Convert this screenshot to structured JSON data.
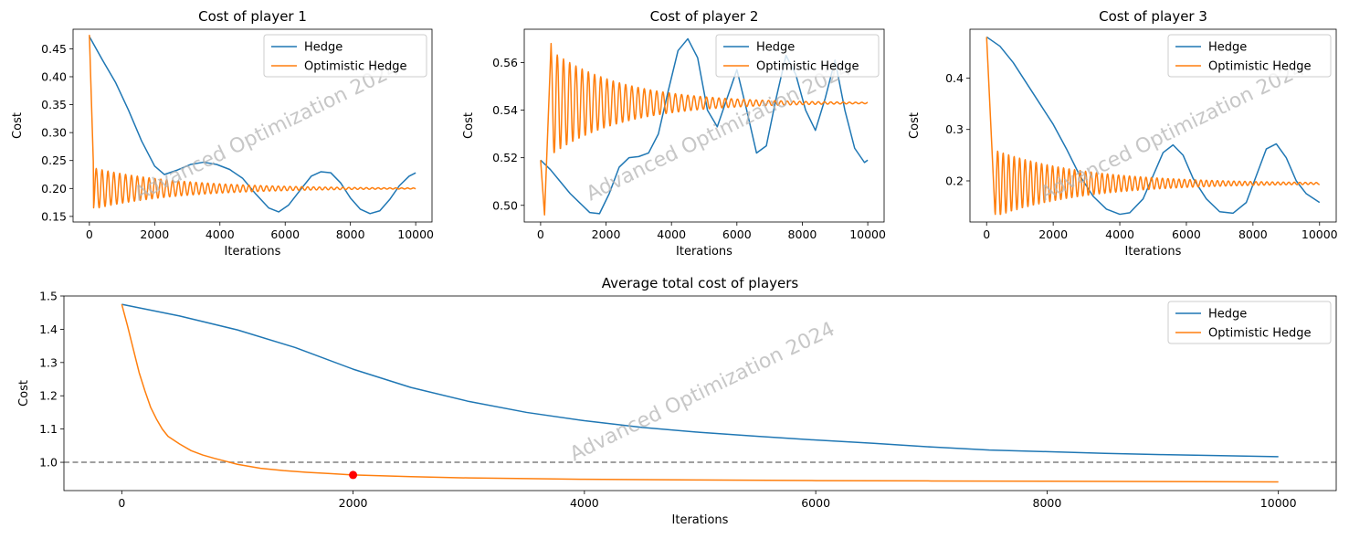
{
  "figure": {
    "watermark": "Advanced Optimization 2024"
  },
  "colors": {
    "hedge": "#1f77b4",
    "optimistic": "#ff7f0e",
    "ref_line": "#808080",
    "marker": "#ff0000"
  },
  "chart_data": [
    {
      "type": "line",
      "title": "Cost of player 1",
      "xlabel": "Iterations",
      "ylabel": "Cost",
      "xlim": [
        -500,
        10500
      ],
      "ylim": [
        0.14,
        0.485
      ],
      "xticks": [
        0,
        2000,
        4000,
        6000,
        8000,
        10000
      ],
      "yticks": [
        0.15,
        0.2,
        0.25,
        0.3,
        0.35,
        0.4,
        0.45
      ],
      "ytick_labels": [
        "0.15",
        "0.20",
        "0.25",
        "0.30",
        "0.35",
        "0.40",
        "0.45"
      ],
      "legend": {
        "position": "top-right",
        "entries": [
          "Hedge",
          "Optimistic Hedge"
        ]
      },
      "series": [
        {
          "name": "Hedge",
          "color": "#1f77b4",
          "x": [
            0,
            400,
            800,
            1200,
            1600,
            2000,
            2300,
            2700,
            3100,
            3500,
            3900,
            4300,
            4700,
            5100,
            5500,
            5800,
            6100,
            6500,
            6800,
            7100,
            7400,
            7700,
            8000,
            8300,
            8600,
            8900,
            9200,
            9500,
            9800,
            10000
          ],
          "y": [
            0.472,
            0.43,
            0.39,
            0.34,
            0.285,
            0.24,
            0.225,
            0.233,
            0.243,
            0.247,
            0.243,
            0.234,
            0.218,
            0.19,
            0.165,
            0.158,
            0.17,
            0.2,
            0.222,
            0.23,
            0.228,
            0.21,
            0.183,
            0.163,
            0.155,
            0.16,
            0.18,
            0.205,
            0.222,
            0.228
          ]
        },
        {
          "name": "Optimistic Hedge",
          "color": "#ff7f0e",
          "generator": {
            "x0": 0,
            "y0": 0.475,
            "drop_to": 0.248,
            "drop_len": 120,
            "center": 0.2,
            "amp0": 0.037,
            "decay": 2600,
            "period": 180
          }
        }
      ]
    },
    {
      "type": "line",
      "title": "Cost of player 2",
      "xlabel": "Iterations",
      "ylabel": "Cost",
      "xlim": [
        -500,
        10500
      ],
      "ylim": [
        0.493,
        0.574
      ],
      "xticks": [
        0,
        2000,
        4000,
        6000,
        8000,
        10000
      ],
      "yticks": [
        0.5,
        0.52,
        0.54,
        0.56
      ],
      "ytick_labels": [
        "0.50",
        "0.52",
        "0.54",
        "0.56"
      ],
      "legend": {
        "position": "top-right",
        "entries": [
          "Hedge",
          "Optimistic Hedge"
        ]
      },
      "series": [
        {
          "name": "Hedge",
          "color": "#1f77b4",
          "x": [
            0,
            300,
            600,
            900,
            1200,
            1500,
            1800,
            2100,
            2400,
            2700,
            3000,
            3300,
            3600,
            3900,
            4200,
            4500,
            4800,
            5100,
            5400,
            5700,
            6000,
            6300,
            6600,
            6900,
            7200,
            7500,
            7800,
            8100,
            8400,
            8700,
            9000,
            9300,
            9600,
            9900,
            10000
          ],
          "y": [
            0.519,
            0.515,
            0.51,
            0.505,
            0.501,
            0.497,
            0.4965,
            0.505,
            0.516,
            0.52,
            0.5205,
            0.522,
            0.53,
            0.548,
            0.565,
            0.57,
            0.562,
            0.54,
            0.533,
            0.545,
            0.557,
            0.54,
            0.522,
            0.525,
            0.545,
            0.563,
            0.555,
            0.54,
            0.5315,
            0.545,
            0.561,
            0.54,
            0.524,
            0.518,
            0.519
          ]
        },
        {
          "name": "Optimistic Hedge",
          "color": "#ff7f0e",
          "generator": {
            "x0": 0,
            "y0": 0.519,
            "dip_to": 0.496,
            "dip_at": 120,
            "rise_to": 0.568,
            "rise_at": 320,
            "center": 0.543,
            "amp0": 0.022,
            "decay": 2200,
            "period": 190
          }
        }
      ]
    },
    {
      "type": "line",
      "title": "Cost of player 3",
      "xlabel": "Iterations",
      "ylabel": "Cost",
      "xlim": [
        -500,
        10500
      ],
      "ylim": [
        0.12,
        0.495
      ],
      "xticks": [
        0,
        2000,
        4000,
        6000,
        8000,
        10000
      ],
      "yticks": [
        0.2,
        0.3,
        0.4
      ],
      "ytick_labels": [
        "0.2",
        "0.3",
        "0.4"
      ],
      "legend": {
        "position": "top-right",
        "entries": [
          "Hedge",
          "Optimistic Hedge"
        ]
      },
      "series": [
        {
          "name": "Hedge",
          "color": "#1f77b4",
          "x": [
            0,
            400,
            800,
            1200,
            1600,
            2000,
            2400,
            2800,
            3200,
            3600,
            4000,
            4300,
            4700,
            5000,
            5300,
            5600,
            5900,
            6200,
            6600,
            7000,
            7400,
            7800,
            8100,
            8400,
            8700,
            9000,
            9300,
            9600,
            10000
          ],
          "y": [
            0.48,
            0.462,
            0.43,
            0.39,
            0.35,
            0.31,
            0.262,
            0.21,
            0.17,
            0.145,
            0.135,
            0.138,
            0.165,
            0.21,
            0.255,
            0.27,
            0.25,
            0.205,
            0.165,
            0.14,
            0.137,
            0.158,
            0.21,
            0.262,
            0.272,
            0.245,
            0.2,
            0.175,
            0.158
          ]
        },
        {
          "name": "Optimistic Hedge",
          "color": "#ff7f0e",
          "generator": {
            "x0": 0,
            "y0": 0.48,
            "drop_to": 0.14,
            "drop_len": 250,
            "center": 0.195,
            "amp0": 0.065,
            "decay": 2700,
            "period": 165
          }
        }
      ]
    },
    {
      "type": "line",
      "title": "Average total cost of players",
      "xlabel": "Iterations",
      "ylabel": "Cost",
      "xlim": [
        -500,
        10500
      ],
      "ylim": [
        0.915,
        1.5
      ],
      "xticks": [
        0,
        2000,
        4000,
        6000,
        8000,
        10000
      ],
      "yticks": [
        1.0,
        1.1,
        1.2,
        1.3,
        1.4,
        1.5
      ],
      "ytick_labels": [
        "1.0",
        "1.1",
        "1.2",
        "1.3",
        "1.4",
        "1.5"
      ],
      "legend": {
        "position": "top-right",
        "entries": [
          "Hedge",
          "Optimistic Hedge"
        ]
      },
      "reference_line": {
        "y": 1.0,
        "style": "dashed",
        "color": "#808080"
      },
      "marker": {
        "x": 2000,
        "y": 0.962,
        "color": "#ff0000"
      },
      "series": [
        {
          "name": "Hedge",
          "color": "#1f77b4",
          "x": [
            0,
            500,
            1000,
            1500,
            2000,
            2500,
            3000,
            3500,
            4000,
            4500,
            5000,
            5500,
            6000,
            6500,
            7000,
            7500,
            8000,
            8500,
            9000,
            9500,
            10000
          ],
          "y": [
            1.475,
            1.44,
            1.398,
            1.345,
            1.28,
            1.225,
            1.183,
            1.15,
            1.125,
            1.105,
            1.09,
            1.078,
            1.067,
            1.057,
            1.046,
            1.037,
            1.032,
            1.027,
            1.023,
            1.02,
            1.017
          ]
        },
        {
          "name": "Optimistic Hedge",
          "color": "#ff7f0e",
          "x": [
            0,
            50,
            100,
            150,
            200,
            250,
            300,
            350,
            400,
            500,
            600,
            700,
            800,
            900,
            1000,
            1200,
            1400,
            1600,
            1800,
            2000,
            2500,
            3000,
            3500,
            4000,
            5000,
            6000,
            7000,
            8000,
            9000,
            10000
          ],
          "y": [
            1.475,
            1.41,
            1.34,
            1.27,
            1.215,
            1.165,
            1.13,
            1.1,
            1.078,
            1.055,
            1.035,
            1.022,
            1.012,
            1.003,
            0.994,
            0.982,
            0.975,
            0.97,
            0.966,
            0.962,
            0.957,
            0.953,
            0.951,
            0.949,
            0.947,
            0.945,
            0.944,
            0.943,
            0.942,
            0.941
          ]
        }
      ]
    }
  ]
}
